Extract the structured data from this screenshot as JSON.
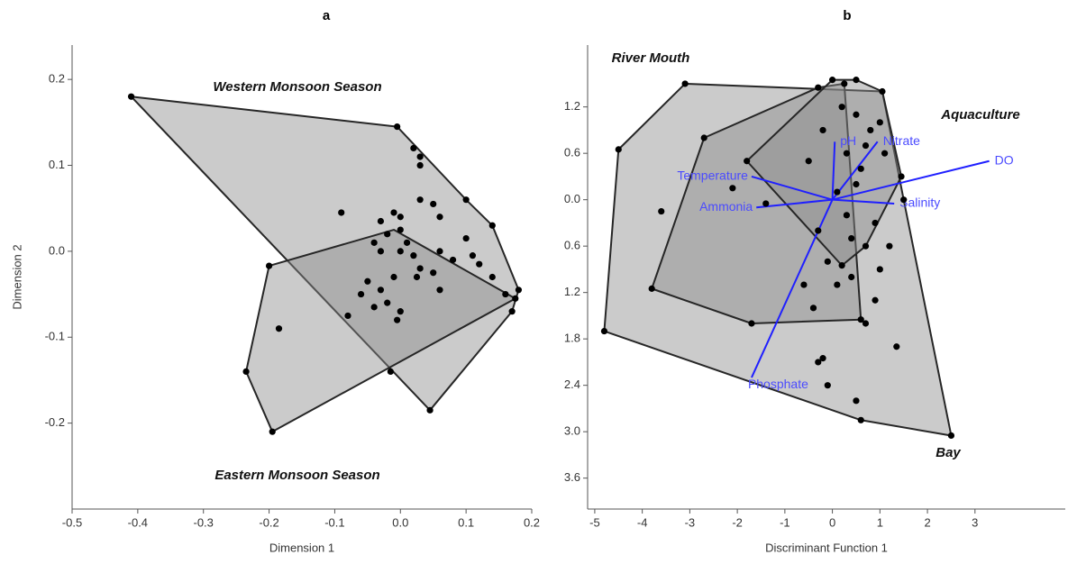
{
  "chart_data": [
    {
      "type": "scatter",
      "title": "a",
      "x_label": "Dimension 1",
      "y_label": "Dimension 2",
      "xlim": [
        -0.5,
        0.2
      ],
      "ylim": [
        -0.3,
        0.24
      ],
      "xticks": [
        -0.5,
        -0.4,
        -0.3,
        -0.2,
        -0.1,
        {
          "value": 0,
          "label": "0.0"
        },
        0.1,
        0.2
      ],
      "yticks": [
        0.2,
        0.1,
        {
          "value": 0,
          "label": "0.0"
        },
        -0.1,
        -0.2
      ],
      "annotations": [
        "Western Monsoon Season",
        "Eastern Monsoon Season"
      ],
      "polygons": [
        {
          "color": "#8c8c8c",
          "x": [
            -0.41,
            -0.005,
            0.1,
            0.14,
            0.18,
            0.17,
            0.045
          ],
          "y": [
            0.18,
            0.145,
            0.06,
            0.03,
            -0.045,
            -0.07,
            -0.185
          ]
        },
        {
          "color": "#8c8c8c",
          "x": [
            -0.2,
            -0.01,
            0.175,
            -0.195,
            -0.235
          ],
          "y": [
            -0.017,
            0.025,
            -0.055,
            -0.21,
            -0.14
          ]
        }
      ],
      "series": [
        {
          "color": "#000000",
          "x": [
            -0.41,
            -0.005,
            0.02,
            0.03,
            0.03,
            0.1,
            0.14,
            0.18,
            0.17,
            0.045,
            -0.2,
            -0.235,
            -0.195,
            -0.015,
            -0.185,
            0.175,
            -0.09,
            -0.03,
            -0.01,
            0.0,
            0.03,
            0.05,
            0.06,
            -0.02,
            0.0,
            0.01,
            -0.03,
            0.02,
            0.06,
            0.08,
            0.1,
            0.11,
            0.03,
            0.05,
            -0.01,
            -0.03,
            -0.05,
            -0.06,
            -0.02,
            0.0,
            -0.005,
            0.025,
            0.06,
            0.16,
            -0.08,
            -0.04,
            0.14,
            0.12,
            -0.04,
            0.0
          ],
          "y": [
            0.18,
            0.145,
            0.12,
            0.11,
            0.1,
            0.06,
            0.03,
            -0.045,
            -0.07,
            -0.185,
            -0.017,
            -0.14,
            -0.21,
            -0.14,
            -0.09,
            -0.055,
            0.045,
            0.035,
            0.045,
            0.04,
            0.06,
            0.055,
            0.04,
            0.02,
            0.025,
            0.01,
            0.0,
            -0.005,
            0.0,
            -0.01,
            0.015,
            -0.005,
            -0.02,
            -0.025,
            -0.03,
            -0.045,
            -0.035,
            -0.05,
            -0.06,
            -0.07,
            -0.08,
            -0.03,
            -0.045,
            -0.05,
            -0.075,
            -0.065,
            -0.03,
            -0.015,
            0.01,
            0.0
          ]
        }
      ]
    },
    {
      "type": "scatter",
      "title": "b",
      "x_label": "Discriminant Function 1",
      "xlim": [
        -5.15,
        4.9
      ],
      "ylim": [
        -4.0,
        2.0
      ],
      "xticks": [
        -5,
        -4,
        -3,
        -2,
        -1,
        0,
        1,
        2,
        3
      ],
      "yticks": [
        1.2,
        0.6,
        {
          "value": 0,
          "label": "0.0"
        },
        {
          "value": -0.6,
          "label": "0.6"
        },
        {
          "value": -1.2,
          "label": "1.2"
        },
        {
          "value": -1.8,
          "label": "1.8"
        },
        {
          "value": -2.4,
          "label": "2.4"
        },
        {
          "value": -3.0,
          "label": "3.0"
        },
        {
          "value": -3.6,
          "label": "3.6"
        }
      ],
      "annotations": [
        "River Mouth",
        "Aquaculture",
        "Bay"
      ],
      "polygons": [
        {
          "color": "#8c8c8c",
          "x": [
            -4.8,
            -4.5,
            -3.1,
            1.05,
            1.5,
            2.5,
            0.6
          ],
          "y": [
            -1.7,
            0.65,
            1.5,
            1.4,
            0.0,
            -3.05,
            -2.85
          ]
        },
        {
          "color": "#8c8c8c",
          "x": [
            -3.8,
            -2.7,
            -0.3,
            0.25,
            0.6,
            -1.7
          ],
          "y": [
            -1.15,
            0.8,
            1.45,
            1.5,
            -1.55,
            -1.6
          ]
        },
        {
          "color": "#8c8c8c",
          "x": [
            -1.8,
            0.0,
            0.5,
            1.05,
            1.45,
            0.7,
            0.2
          ],
          "y": [
            0.5,
            1.55,
            1.55,
            1.4,
            0.3,
            -0.6,
            -0.85
          ]
        }
      ],
      "vectors": {
        "color": "#1f1fff",
        "labels": [
          "DO",
          "Nitrate",
          "pH",
          "Temperature",
          "Ammonia",
          "Salinity",
          "Phosphate"
        ],
        "x": [
          3.3,
          0.95,
          0.05,
          -1.7,
          -1.6,
          1.3,
          -1.7
        ],
        "y": [
          0.5,
          0.75,
          0.75,
          0.3,
          -0.1,
          -0.05,
          -2.3
        ]
      },
      "series": [
        {
          "color": "#000000",
          "x": [
            -4.8,
            -4.5,
            -3.1,
            1.05,
            1.5,
            2.5,
            0.6,
            -3.8,
            -2.7,
            -0.3,
            0.25,
            0.6,
            -1.7,
            -1.8,
            0.0,
            0.5,
            1.45,
            0.7,
            0.2,
            -2.1,
            -3.6,
            -1.4,
            -0.3,
            -0.1,
            -0.4,
            0.1,
            -0.2,
            -0.3,
            -0.1,
            0.5,
            0.7,
            1.0,
            1.2,
            1.35,
            0.9,
            0.6,
            0.8,
            1.0,
            0.3,
            0.5,
            0.2,
            -0.2,
            0.1,
            0.3,
            0.5,
            0.4,
            -0.5,
            0.7,
            1.1,
            -0.6,
            0.9,
            0.4
          ],
          "y": [
            -1.7,
            0.65,
            1.5,
            1.4,
            0.0,
            -3.05,
            -2.85,
            -1.15,
            0.8,
            1.45,
            1.5,
            -1.55,
            -1.6,
            0.5,
            1.55,
            1.55,
            0.3,
            -0.6,
            -0.85,
            0.15,
            -0.15,
            -0.05,
            -0.4,
            -0.8,
            -1.4,
            -1.1,
            -2.05,
            -2.1,
            -2.4,
            -2.6,
            -1.6,
            -0.9,
            -0.6,
            -1.9,
            -0.3,
            0.4,
            0.9,
            1.0,
            0.6,
            1.1,
            1.2,
            0.9,
            0.1,
            -0.2,
            0.2,
            -0.5,
            0.5,
            0.7,
            0.6,
            -1.1,
            -1.3,
            -1.0
          ]
        }
      ]
    }
  ]
}
